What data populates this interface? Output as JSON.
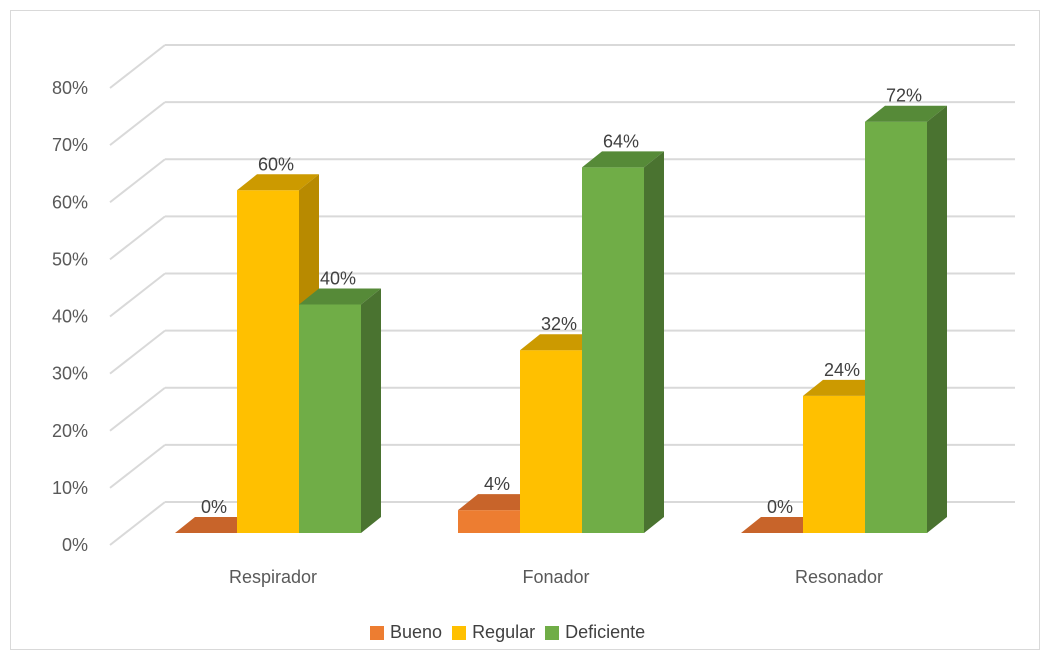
{
  "chart_data": {
    "type": "bar",
    "title": "",
    "xlabel": "",
    "ylabel": "",
    "categories": [
      "Respirador",
      "Fonador",
      "Resonador"
    ],
    "series": [
      {
        "name": "Bueno",
        "values": [
          0,
          4,
          0
        ],
        "color": "#ED7D31",
        "side_color": "#B65D21",
        "top_color": "#C8642A"
      },
      {
        "name": "Regular",
        "values": [
          60,
          32,
          24
        ],
        "color": "#FFC000",
        "side_color": "#B88A00",
        "top_color": "#CC9A00"
      },
      {
        "name": "Deficiente",
        "values": [
          40,
          64,
          72
        ],
        "color": "#70AD47",
        "side_color": "#4A7330",
        "top_color": "#568A38"
      }
    ],
    "data_labels": [
      [
        "0%",
        "4%",
        "0%"
      ],
      [
        "60%",
        "32%",
        "24%"
      ],
      [
        "40%",
        "64%",
        "72%"
      ]
    ],
    "ylim": [
      0,
      80
    ],
    "yticks": [
      "0%",
      "10%",
      "20%",
      "30%",
      "40%",
      "50%",
      "60%",
      "70%",
      "80%"
    ],
    "grid": true,
    "legend_position": "bottom",
    "chart_style": "3d-clustered-column"
  }
}
